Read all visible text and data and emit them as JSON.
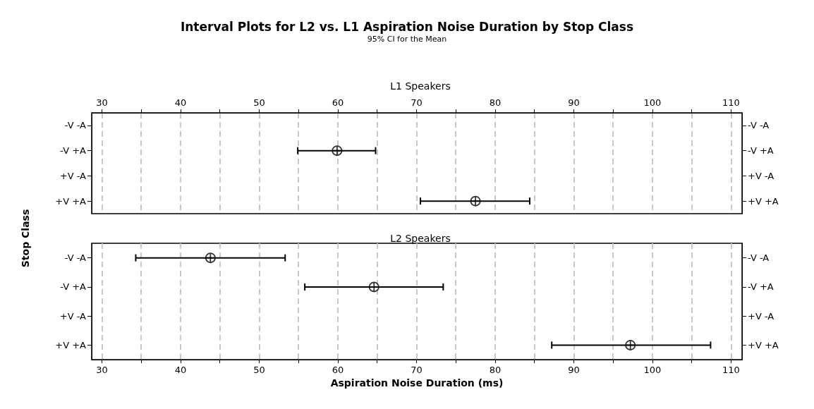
{
  "chart_data": [
    {
      "type": "scatter",
      "title": "Interval Plots for L2 vs. L1 Aspiration Noise Duration by Stop Class",
      "subtitle": "95% CI for the Mean",
      "ylabel": "Stop Class",
      "annotations": [
        "L1 Speakers"
      ],
      "orientation": "horizontal",
      "categories": [
        "-V -A",
        "-V +A",
        "+V -A",
        "+V +A"
      ],
      "values": [
        null,
        59.9,
        null,
        77.5
      ],
      "errors": [
        null,
        [
          54.9,
          64.8
        ],
        null,
        [
          70.5,
          84.4
        ]
      ],
      "color": "#000000",
      "marker": "circle",
      "xlim": [
        28.7,
        111.4
      ],
      "xticks": [
        30,
        {
          "value": 35,
          "label": null
        },
        40,
        {
          "value": 45,
          "label": null
        },
        50,
        {
          "value": 55,
          "label": null
        },
        60,
        {
          "value": 65,
          "label": null
        },
        70,
        {
          "value": 75,
          "label": null
        },
        80,
        {
          "value": 85,
          "label": null
        },
        90,
        {
          "value": 95,
          "label": null
        },
        100,
        {
          "value": 105,
          "label": null
        },
        110
      ],
      "grid": "x"
    },
    {
      "type": "scatter",
      "title": "L2 Speakers",
      "xlabel": "Aspiration Noise Duration (ms)",
      "orientation": "horizontal",
      "categories": [
        "-V -A",
        "-V +A",
        "+V -A",
        "+V +A"
      ],
      "values": [
        43.8,
        64.6,
        null,
        97.2
      ],
      "errors": [
        [
          34.3,
          53.3
        ],
        [
          55.8,
          73.4
        ],
        null,
        [
          87.2,
          107.4
        ]
      ],
      "color": "#000000",
      "marker": "circle",
      "xlim": [
        28.7,
        111.4
      ],
      "xticks": [
        30,
        {
          "value": 35,
          "label": null
        },
        40,
        {
          "value": 45,
          "label": null
        },
        50,
        {
          "value": 55,
          "label": null
        },
        60,
        {
          "value": 65,
          "label": null
        },
        70,
        {
          "value": 75,
          "label": null
        },
        80,
        {
          "value": 85,
          "label": null
        },
        90,
        {
          "value": 95,
          "label": null
        },
        100,
        {
          "value": 105,
          "label": null
        },
        110
      ],
      "grid": "x"
    }
  ]
}
